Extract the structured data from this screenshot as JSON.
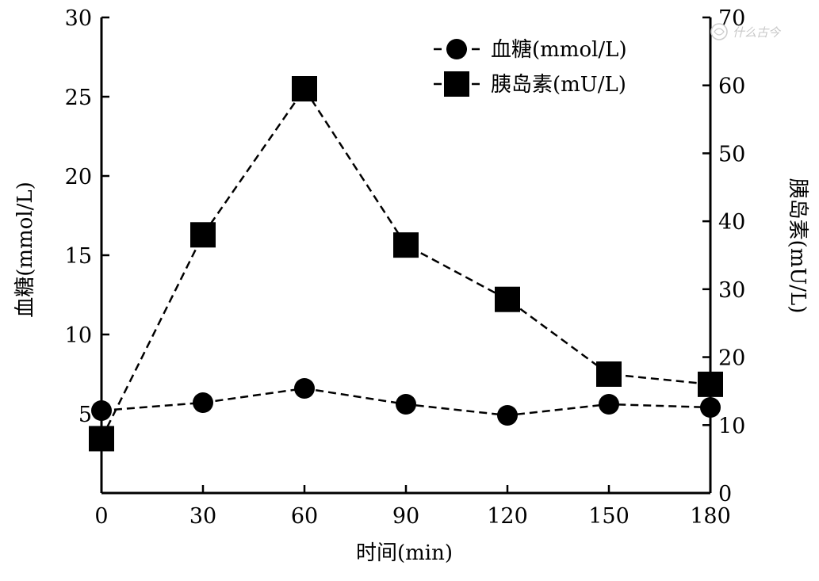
{
  "chart_data": {
    "type": "line",
    "x": [
      0,
      30,
      60,
      90,
      120,
      150,
      180
    ],
    "xlabel": "时间(min)",
    "xlim": [
      0,
      180
    ],
    "x_ticks": [
      "0",
      "30",
      "60",
      "90",
      "120",
      "150",
      "180"
    ],
    "ylabel_left": "血糖(mmol/L)",
    "ylim_left": [
      0,
      30
    ],
    "y_ticks_left": [
      "5",
      "10",
      "15",
      "20",
      "25",
      "30"
    ],
    "ylabel_right": "胰岛素(mU/L)",
    "ylim_right": [
      0,
      70
    ],
    "y_ticks_right": [
      "0",
      "10",
      "20",
      "30",
      "40",
      "50",
      "60",
      "70"
    ],
    "grid": false,
    "legend_position": "top-right",
    "series": [
      {
        "name": "血糖(mmol/L)",
        "axis": "left",
        "marker": "circle",
        "line_style": "dashed",
        "color": "#000000",
        "values": [
          5.2,
          5.7,
          6.6,
          5.6,
          4.9,
          5.6,
          5.4
        ]
      },
      {
        "name": "胰岛素(mU/L)",
        "axis": "right",
        "marker": "square",
        "line_style": "dashed",
        "color": "#000000",
        "values": [
          8,
          38,
          59.5,
          36.5,
          28.5,
          17.5,
          16
        ]
      }
    ]
  },
  "watermark_text": "什么古今"
}
